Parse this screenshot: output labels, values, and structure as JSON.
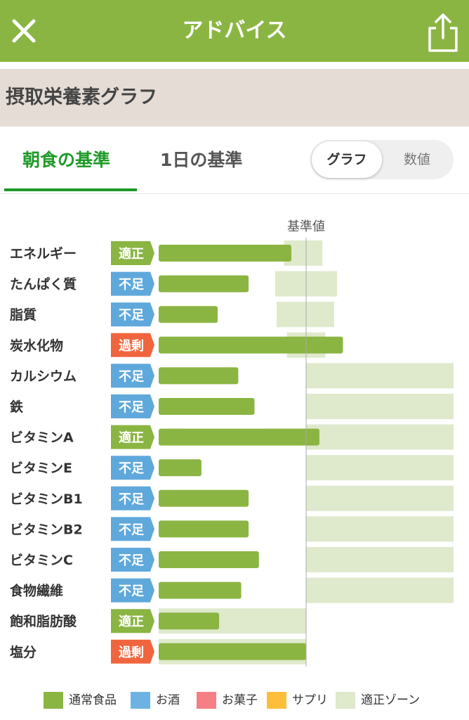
{
  "header": {
    "title": "アドバイス",
    "close_icon": "close-icon",
    "share_icon": "share-icon"
  },
  "section": {
    "title": "摂取栄養素グラフ"
  },
  "tabs": [
    {
      "label": "朝食の基準",
      "active": true
    },
    {
      "label": "1日の基準",
      "active": false
    }
  ],
  "view_toggle": {
    "options": [
      "グラフ",
      "数値"
    ],
    "selected": "グラフ"
  },
  "colors": {
    "header": "#8bb543",
    "bar": "#8bb543",
    "zone": "#dfe9cc",
    "ok": "#8bb543",
    "low": "#5fa8dc",
    "high": "#f0653e",
    "tab_active": "#1f9a29"
  },
  "chart_data": {
    "type": "bar",
    "orientation": "horizontal",
    "reference_label": "基準値",
    "reference_value": 100,
    "unit": "% of reference",
    "categories": [
      "エネルギー",
      "たんぱく質",
      "脂質",
      "炭水化物",
      "カルシウム",
      "鉄",
      "ビタミンA",
      "ビタミンE",
      "ビタミンB1",
      "ビタミンB2",
      "ビタミンC",
      "食物繊維",
      "飽和脂肪酸",
      "塩分"
    ],
    "status": [
      "適正",
      "不足",
      "不足",
      "過剰",
      "不足",
      "不足",
      "適正",
      "不足",
      "不足",
      "不足",
      "不足",
      "不足",
      "適正",
      "過剰"
    ],
    "series": [
      {
        "name": "通常食品",
        "values": [
          90,
          61,
          40,
          125,
          54,
          65,
          109,
          29,
          61,
          61,
          68,
          56,
          41,
          100
        ]
      }
    ],
    "zones": [
      [
        85,
        111
      ],
      [
        79,
        121
      ],
      [
        80,
        119
      ],
      [
        87,
        113
      ],
      [
        100,
        200
      ],
      [
        100,
        200
      ],
      [
        100,
        200
      ],
      [
        100,
        200
      ],
      [
        100,
        200
      ],
      [
        100,
        200
      ],
      [
        100,
        200
      ],
      [
        100,
        200
      ],
      [
        0,
        100
      ],
      [
        0,
        100
      ]
    ],
    "xlim": [
      0,
      200
    ],
    "legend": [
      "通常食品",
      "お酒",
      "お菓子",
      "サプリ",
      "適正ゾーン"
    ],
    "legend_colors": [
      "#8bb543",
      "#6cb3e3",
      "#f57f85",
      "#fdbf3b",
      "#dfe9cc"
    ]
  }
}
